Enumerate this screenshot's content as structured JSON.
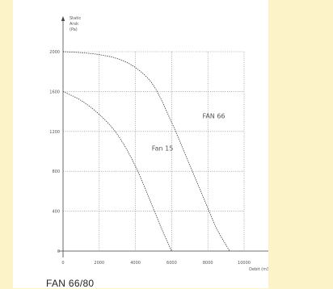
{
  "caption": "FAN 66/80",
  "chart_data": {
    "type": "line",
    "ylabel": [
      "Static",
      "Arsk",
      "(Pa)"
    ],
    "xlabel": "Debit (m3/h)",
    "xlim": [
      0,
      10000
    ],
    "ylim": [
      0,
      2000
    ],
    "x_ticks": [
      0,
      2000,
      4000,
      6000,
      8000,
      10000
    ],
    "x_tick_labels": [
      "0",
      "2000",
      "4000",
      "6000",
      "8000",
      "10000"
    ],
    "y_ticks": [
      0,
      400,
      800,
      1200,
      1600,
      2000
    ],
    "y_tick_labels": [
      "0",
      "400",
      "800",
      "1200",
      "1600",
      "2000"
    ],
    "grid": true,
    "series": [
      {
        "name": "FAN 66",
        "x": [
          0,
          1000,
          2000,
          3000,
          4000,
          5000,
          6000,
          7000,
          8000,
          8500,
          9200
        ],
        "y": [
          2000,
          1990,
          1970,
          1930,
          1840,
          1660,
          1290,
          860,
          430,
          220,
          0
        ]
      },
      {
        "name": "Fan 15",
        "x": [
          0,
          1000,
          2000,
          3000,
          4000,
          5000,
          5500,
          6000
        ],
        "y": [
          1600,
          1510,
          1370,
          1170,
          850,
          420,
          200,
          0
        ]
      }
    ]
  }
}
